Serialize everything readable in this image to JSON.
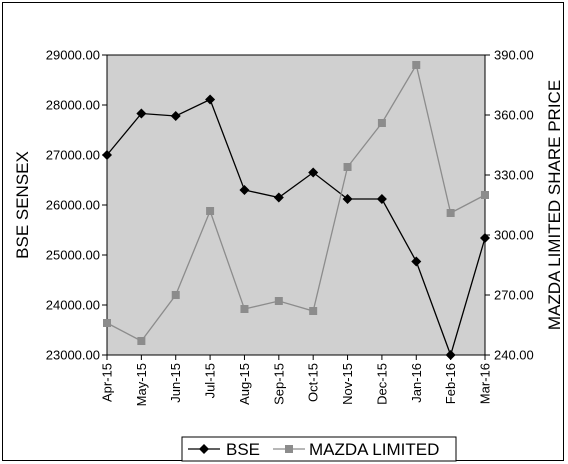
{
  "chart_data": {
    "type": "line",
    "categories": [
      "Apr-15",
      "May-15",
      "Jun-15",
      "Jul-15",
      "Aug-15",
      "Sep-15",
      "Oct-15",
      "Nov-15",
      "Dec-15",
      "Jan-16",
      "Feb-16",
      "Mar-16"
    ],
    "series": [
      {
        "name": "BSE",
        "axis": "left",
        "color": "#000000",
        "marker": "diamond",
        "values": [
          27000,
          27830,
          27780,
          28110,
          26300,
          26150,
          26650,
          26120,
          26120,
          24870,
          23000,
          25340
        ]
      },
      {
        "name": "MAZDA LIMITED",
        "axis": "right",
        "color": "#8c8c8c",
        "marker": "square",
        "values": [
          256,
          247,
          270,
          312,
          263,
          267,
          262,
          334,
          356,
          385,
          311,
          320
        ]
      }
    ],
    "ylabel": "BSE SENSEX",
    "y2label": "MAZDA LIMITED SHARE PRICE",
    "ylim": [
      23000,
      29000
    ],
    "y2lim": [
      240,
      390
    ],
    "yticks": [
      "23000.00",
      "24000.00",
      "25000.00",
      "26000.00",
      "27000.00",
      "28000.00",
      "29000.00"
    ],
    "y2ticks": [
      "240.00",
      "270.00",
      "300.00",
      "330.00",
      "360.00",
      "390.00"
    ],
    "legend_position": "bottom",
    "grid": false,
    "plot_background": "#d0d0d0"
  }
}
